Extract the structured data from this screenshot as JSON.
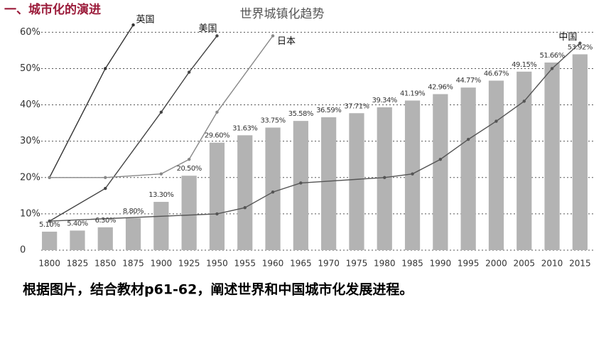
{
  "heading": "一、城市化的演进",
  "caption": "根据图片，结合教材p61-62，阐述世界和中国城市化发展进程。",
  "chart_data": {
    "type": "bar",
    "title": "世界城镇化趋势",
    "categories": [
      "1800",
      "1825",
      "1850",
      "1875",
      "1900",
      "1925",
      "1950",
      "1955",
      "1960",
      "1965",
      "1970",
      "1975",
      "1980",
      "1985",
      "1990",
      "1995",
      "2000",
      "2005",
      "2010",
      "2015"
    ],
    "values": [
      5.1,
      5.4,
      6.3,
      8.8,
      13.3,
      20.5,
      29.6,
      31.63,
      33.75,
      35.58,
      36.59,
      37.71,
      39.34,
      41.19,
      42.96,
      44.77,
      46.67,
      49.15,
      51.66,
      53.92
    ],
    "value_labels": [
      "5.10%",
      "5.40%",
      "6.30%",
      "8.80%",
      "13.30%",
      "20.50%",
      "29.60%",
      "31.63%",
      "33.75%",
      "35.58%",
      "36.59%",
      "37.71%",
      "39.34%",
      "41.19%",
      "42.96%",
      "44.77%",
      "46.67%",
      "49.15%",
      "51.66%",
      "53.92%"
    ],
    "color": "#b3b3b3",
    "ylim": [
      0,
      63
    ],
    "yticks": [
      0,
      {
        "value": 10,
        "label": "10%"
      },
      {
        "value": 20,
        "label": "20%"
      },
      {
        "value": 30,
        "label": "30%"
      },
      {
        "value": 40,
        "label": "40%"
      },
      {
        "value": 50,
        "label": "50%"
      },
      {
        "value": 60,
        "label": "60%"
      }
    ],
    "grid": true,
    "series": [
      {
        "name": "英国",
        "color": "#333333",
        "x": [
          "1800",
          "1850",
          "1875"
        ],
        "values": [
          20,
          50,
          62
        ]
      },
      {
        "name": "美国",
        "color": "#444444",
        "x": [
          "1800",
          "1850",
          "1900",
          "1925",
          "1950"
        ],
        "values": [
          8,
          17,
          38,
          49,
          59
        ]
      },
      {
        "name": "日本",
        "color": "#888888",
        "x": [
          "1800",
          "1850",
          "1900",
          "1925",
          "1950",
          "1960"
        ],
        "values": [
          20,
          20,
          21,
          25,
          38,
          59
        ]
      },
      {
        "name": "中国",
        "color": "#555555",
        "x": [
          "1800",
          "1950",
          "1955",
          "1960",
          "1965",
          "1980",
          "1985",
          "1990",
          "1995",
          "2000",
          "2005",
          "2010",
          "2015"
        ],
        "values": [
          8,
          10,
          11.7,
          16,
          18.5,
          20,
          21,
          25,
          30.5,
          35.5,
          41,
          50,
          57
        ]
      }
    ]
  }
}
